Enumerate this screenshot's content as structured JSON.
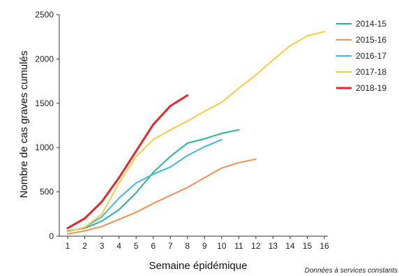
{
  "chart_data": {
    "type": "line",
    "xlabel": "Semaine épidémique",
    "ylabel": "Nombre de cas graves cumulés",
    "xlim": [
      1,
      16
    ],
    "ylim": [
      0,
      2500
    ],
    "xticks": [
      1,
      2,
      3,
      4,
      5,
      6,
      7,
      8,
      9,
      10,
      11,
      12,
      13,
      14,
      15,
      16
    ],
    "yticks": [
      0,
      500,
      1000,
      1500,
      2000,
      2500
    ],
    "grid": false,
    "legend_position": "right",
    "footnote": "Données à services constants",
    "series": [
      {
        "name": "2014-15",
        "color": "#2bb58f",
        "width": 2,
        "x": [
          1,
          2,
          3,
          4,
          5,
          6,
          7,
          8,
          9,
          10,
          11
        ],
        "y": [
          60,
          90,
          170,
          300,
          490,
          720,
          900,
          1050,
          1100,
          1160,
          1200
        ]
      },
      {
        "name": "2015-16",
        "color": "#f39153",
        "width": 2,
        "x": [
          1,
          2,
          3,
          4,
          5,
          6,
          7,
          8,
          9,
          10,
          11,
          12
        ],
        "y": [
          25,
          60,
          110,
          190,
          270,
          370,
          460,
          550,
          660,
          770,
          830,
          870
        ]
      },
      {
        "name": "2016-17",
        "color": "#3fb7e4",
        "width": 2,
        "x": [
          1,
          2,
          3,
          4,
          5,
          6,
          7,
          8,
          9,
          10
        ],
        "y": [
          50,
          100,
          220,
          430,
          600,
          700,
          780,
          910,
          1010,
          1090
        ]
      },
      {
        "name": "2017-18",
        "color": "#f8cd40",
        "width": 2,
        "x": [
          1,
          2,
          3,
          4,
          5,
          6,
          7,
          8,
          9,
          10,
          11,
          12,
          13,
          14,
          15,
          16
        ],
        "y": [
          50,
          100,
          250,
          600,
          900,
          1090,
          1200,
          1300,
          1410,
          1510,
          1670,
          1820,
          1990,
          2150,
          2260,
          2310
        ]
      },
      {
        "name": "2018-19",
        "color": "#e8262b",
        "width": 3,
        "x": [
          1,
          2,
          3,
          4,
          5,
          6,
          7,
          8
        ],
        "y": [
          90,
          200,
          390,
          660,
          960,
          1260,
          1470,
          1590
        ]
      }
    ]
  }
}
